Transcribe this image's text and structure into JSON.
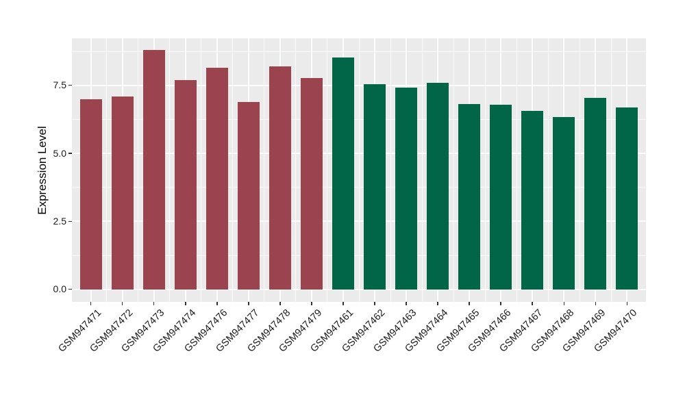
{
  "figure": {
    "background": "#ffffff"
  },
  "chart_data": {
    "type": "bar",
    "title": "",
    "xlabel": "",
    "ylabel": "Expression Level",
    "categories": [
      "GSM947471",
      "GSM947472",
      "GSM947473",
      "GSM947474",
      "GSM947476",
      "GSM947477",
      "GSM947478",
      "GSM947479",
      "GSM947461",
      "GSM947462",
      "GSM947463",
      "GSM947464",
      "GSM947465",
      "GSM947466",
      "GSM947467",
      "GSM947468",
      "GSM947469",
      "GSM947470"
    ],
    "values": [
      6.99,
      7.08,
      8.8,
      7.7,
      8.15,
      6.9,
      8.2,
      7.78,
      8.52,
      7.55,
      7.43,
      7.6,
      6.81,
      6.79,
      6.57,
      6.33,
      7.04,
      6.69
    ],
    "bar_colors": [
      "#9B4450",
      "#9B4450",
      "#9B4450",
      "#9B4450",
      "#9B4450",
      "#9B4450",
      "#9B4450",
      "#9B4450",
      "#006647",
      "#006647",
      "#006647",
      "#006647",
      "#006647",
      "#006647",
      "#006647",
      "#006647",
      "#006647",
      "#006647"
    ],
    "group_colors": {
      "left_group_color": "#9B4450",
      "right_group_color": "#006647"
    },
    "yticks": {
      "labels": [
        "0.0",
        "2.5",
        "5.0",
        "7.5"
      ],
      "values": [
        0,
        2.5,
        5,
        7.5
      ]
    },
    "yticks_minor": [
      1.25,
      3.75,
      6.25,
      8.75
    ],
    "ylim": [
      -0.46,
      9.23
    ],
    "grid": true,
    "legend": "none",
    "x_label_angle_deg": 45,
    "bar_width_fraction": 0.7,
    "panel_background": "#EBEBEB",
    "grid_color": "#FFFFFF",
    "axis_text_color": "#1A1A1A"
  }
}
